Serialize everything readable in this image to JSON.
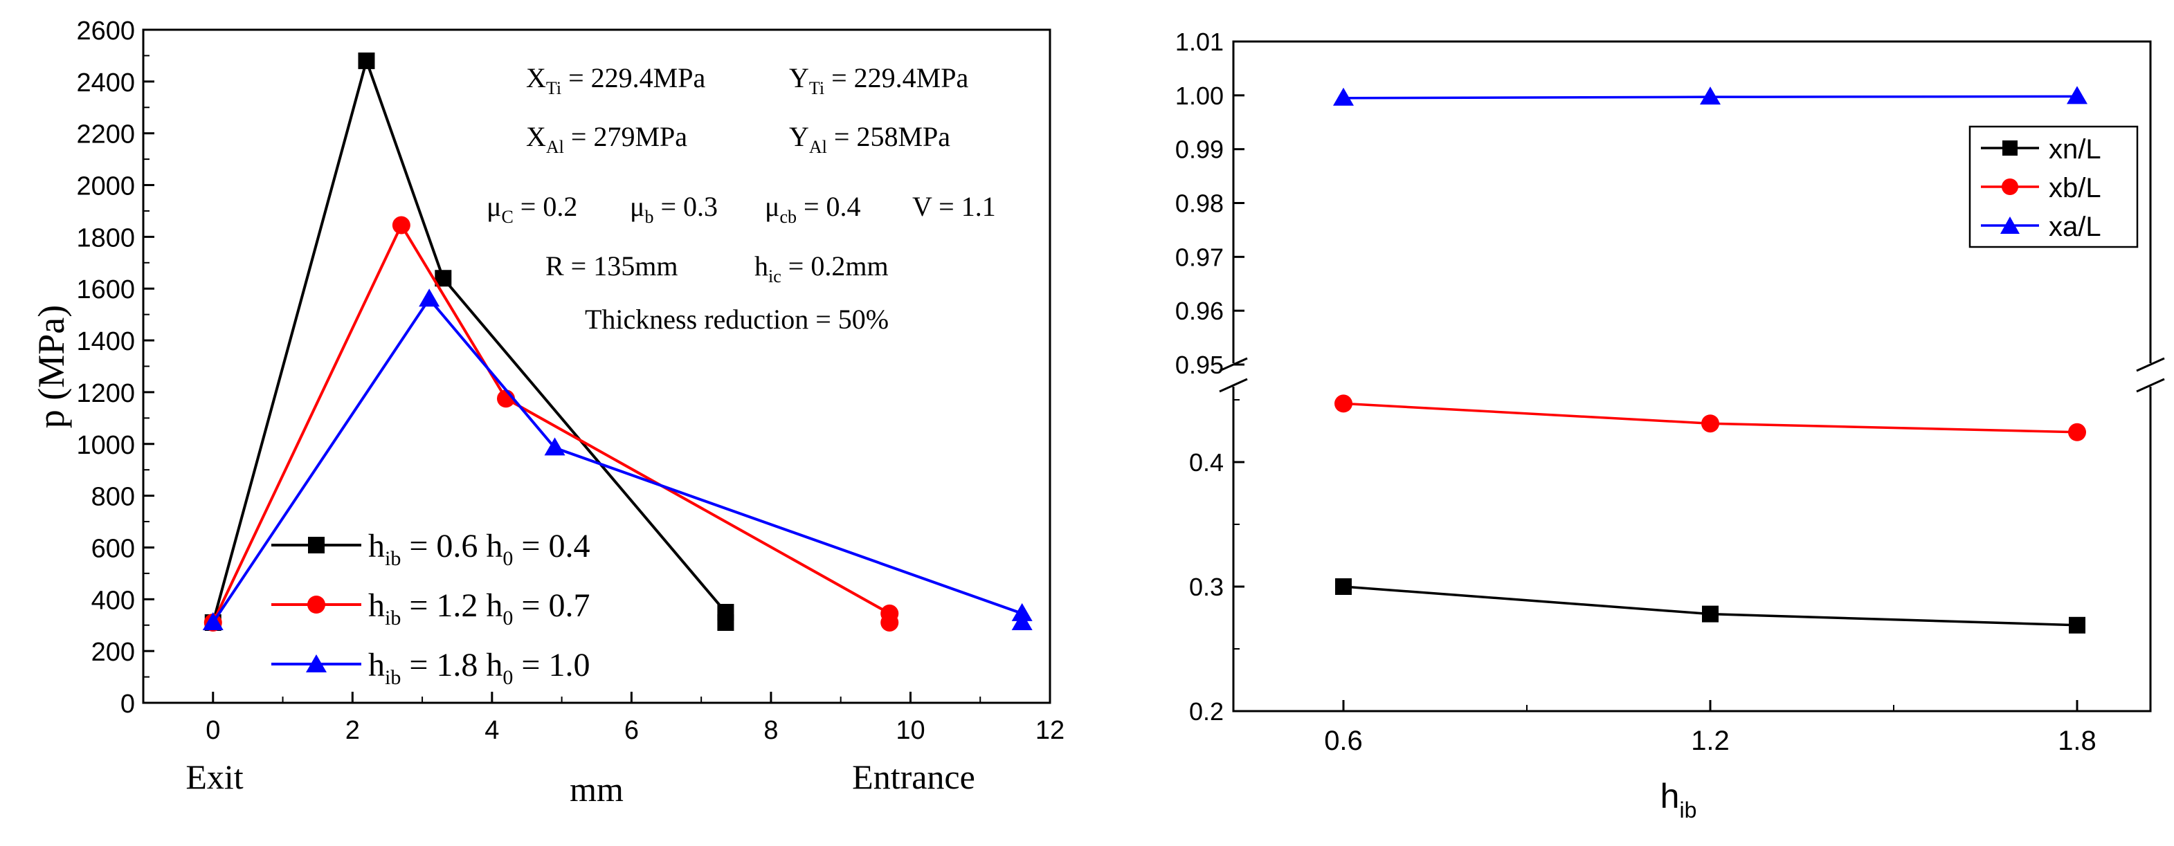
{
  "colors": {
    "black": "#000000",
    "red": "#ff0000",
    "blue": "#0000ff",
    "axis": "#000000"
  },
  "chart_data": [
    {
      "type": "line",
      "name": "pressure-distribution",
      "ylabel": "p (MPa)",
      "xlabel": "mm",
      "x_extra_labels": {
        "left": "Exit",
        "right": "Entrance"
      },
      "xlim": [
        -1,
        12
      ],
      "ylim": [
        0,
        2600
      ],
      "xticks": [
        0,
        2,
        4,
        6,
        8,
        10,
        12
      ],
      "yticks": [
        0,
        200,
        400,
        600,
        800,
        1000,
        1200,
        1400,
        1600,
        1800,
        2000,
        2200,
        2400,
        2600
      ],
      "annotations": {
        "row1": {
          "x_ti": "X",
          "x_ti_sub": "Ti",
          "x_ti_val": " = 229.4MPa",
          "y_ti": "Y",
          "y_ti_sub": "Ti",
          "y_ti_val": " = 229.4MPa"
        },
        "row2": {
          "x_al": "X",
          "x_al_sub": "Al",
          "x_al_val": " = 279MPa",
          "y_al": "Y",
          "y_al_sub": "Al",
          "y_al_val": " = 258MPa"
        },
        "row3": {
          "mu_c": "μ",
          "mu_c_sub": "C",
          "mu_c_val": " = 0.2",
          "mu_b": "μ",
          "mu_b_sub": "b",
          "mu_b_val": " = 0.3",
          "mu_cb": "μ",
          "mu_cb_sub": "cb",
          "mu_cb_val": " = 0.4",
          "v": "V = 1.1"
        },
        "row4": {
          "r": "R = 135mm",
          "h_ic": "h",
          "h_ic_sub": "ic",
          "h_ic_val": " = 0.2mm"
        },
        "row5": {
          "thickness": "Thickness reduction = 50%"
        }
      },
      "series": [
        {
          "name": "h_ib = 0.6  h_0 = 0.4",
          "legend_h": "h",
          "legend_h_sub": "ib",
          "legend_h_val": " = 0.6  h",
          "legend_h0_sub": "0",
          "legend_h0_val": " = 0.4",
          "color": "#000000",
          "marker": "square",
          "points": [
            [
              0,
              310
            ],
            [
              2.2,
              2480
            ],
            [
              3.3,
              1640
            ],
            [
              7.35,
              350
            ]
          ],
          "extra_points": [
            [
              7.35,
              310
            ]
          ]
        },
        {
          "name": "h_ib = 1.2  h_0 = 0.7",
          "legend_h": "h",
          "legend_h_sub": "ib",
          "legend_h_val": " = 1.2  h",
          "legend_h0_sub": "0",
          "legend_h0_val": " = 0.7",
          "color": "#ff0000",
          "marker": "circle",
          "points": [
            [
              0,
              310
            ],
            [
              2.7,
              1845
            ],
            [
              4.2,
              1175
            ],
            [
              9.7,
              345
            ]
          ],
          "extra_points": [
            [
              9.7,
              310
            ]
          ]
        },
        {
          "name": "h_ib = 1.8  h_0 = 1.0",
          "legend_h": "h",
          "legend_h_sub": "ib",
          "legend_h_val": " = 1.8  h",
          "legend_h0_sub": "0",
          "legend_h0_val": " = 1.0",
          "color": "#0000ff",
          "marker": "triangle",
          "points": [
            [
              0,
              310
            ],
            [
              3.1,
              1560
            ],
            [
              4.9,
              985
            ],
            [
              11.6,
              345
            ]
          ],
          "extra_points": [
            [
              11.6,
              310
            ]
          ]
        }
      ]
    },
    {
      "type": "line",
      "name": "neutral-point-ratio",
      "xlabel": "h",
      "xlabel_sub": "ib",
      "categories": [
        "0.6",
        "1.2",
        "1.8"
      ],
      "x": [
        0.6,
        1.2,
        1.8
      ],
      "xlim": [
        0.42,
        1.92
      ],
      "broken_y_axis": true,
      "ylim_upper": [
        0.95,
        1.01
      ],
      "ylim_lower": [
        0.2,
        0.47
      ],
      "yticks_upper": [
        "0.95",
        "0.96",
        "0.97",
        "0.98",
        "0.99",
        "1.00",
        "1.01"
      ],
      "yticks_lower": [
        "0.2",
        "0.3",
        "0.4"
      ],
      "legend": {
        "position": "top-right"
      },
      "series": [
        {
          "name": "xn/L",
          "color": "#000000",
          "marker": "square",
          "values": [
            0.3,
            0.278,
            0.269
          ]
        },
        {
          "name": "xb/L",
          "color": "#ff0000",
          "marker": "circle",
          "values": [
            0.447,
            0.431,
            0.424
          ]
        },
        {
          "name": "xa/L",
          "color": "#0000ff",
          "marker": "triangle",
          "values": [
            0.9995,
            0.9997,
            0.9998
          ]
        }
      ]
    }
  ]
}
